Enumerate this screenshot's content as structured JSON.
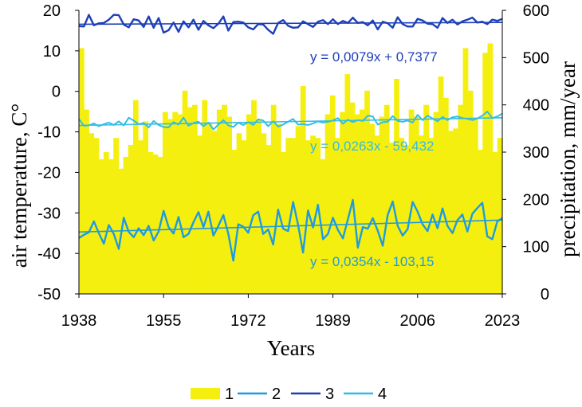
{
  "chart_data": {
    "type": "bar+line",
    "xlabel": "Years",
    "ylabel_left": "air temperature, C°",
    "ylabel_right": "precipitation, mm/year",
    "xlim": [
      1938,
      2023
    ],
    "x_ticks": [
      "1938",
      "1955",
      "1972",
      "1989",
      "2006",
      "2023"
    ],
    "ylim_left": [
      -50,
      20
    ],
    "y_ticks_left": [
      "20",
      "10",
      "0",
      "-10",
      "-20",
      "-30",
      "-40",
      "-50"
    ],
    "ylim_right": [
      0,
      600
    ],
    "y_ticks_right": [
      "600",
      "500",
      "400",
      "300",
      "200",
      "100",
      "0"
    ],
    "grid": false,
    "legend_position": "bottom",
    "legend": [
      "1",
      "2",
      "3",
      "4"
    ],
    "colors": {
      "precip": "#f5ef0f",
      "temp_min": "#1e9be0",
      "temp_max": "#1d3fb8",
      "temp_mean": "#33bde6"
    },
    "years_start": 1938,
    "series": [
      {
        "name": "1",
        "kind": "bar",
        "axis": "right",
        "values": [
          520,
          390,
          340,
          330,
          285,
          300,
          285,
          330,
          265,
          290,
          315,
          410,
          325,
          365,
          300,
          295,
          290,
          385,
          370,
          385,
          380,
          430,
          395,
          400,
          335,
          410,
          360,
          345,
          390,
          400,
          375,
          305,
          340,
          325,
          380,
          410,
          370,
          340,
          315,
          400,
          360,
          300,
          330,
          330,
          355,
          440,
          325,
          335,
          330,
          285,
          380,
          420,
          330,
          385,
          465,
          405,
          380,
          390,
          430,
          360,
          335,
          375,
          400,
          320,
          455,
          330,
          315,
          390,
          375,
          335,
          400,
          330,
          385,
          460,
          415,
          345,
          350,
          400,
          520,
          430,
          370,
          305,
          510,
          530,
          300,
          330
        ]
      },
      {
        "name": "2",
        "kind": "line",
        "axis": "left",
        "values": [
          -36.2,
          -35.4,
          -34.8,
          -32.1,
          -35.0,
          -37.6,
          -33.0,
          -35.2,
          -38.9,
          -31.2,
          -34.7,
          -36.0,
          -33.8,
          -35.5,
          -33.2,
          -36.8,
          -34.6,
          -29.5,
          -33.5,
          -35.1,
          -31.0,
          -36.0,
          -35.2,
          -32.3,
          -29.8,
          -33.5,
          -29.7,
          -35.6,
          -33.2,
          -30.5,
          -35.2,
          -41.8,
          -32.8,
          -33.4,
          -34.9,
          -30.6,
          -29.7,
          -35.2,
          -34.1,
          -37.8,
          -29.2,
          -33.9,
          -34.5,
          -27.3,
          -32.9,
          -39.8,
          -29.4,
          -33.6,
          -28.0,
          -36.5,
          -35.2,
          -31.2,
          -34.2,
          -36.3,
          -31.6,
          -26.8,
          -38.6,
          -33.5,
          -33.9,
          -31.3,
          -34.4,
          -38.1,
          -30.5,
          -27.2,
          -33.2,
          -35.6,
          -34.0,
          -27.3,
          -29.7,
          -32.8,
          -34.5,
          -30.4,
          -33.8,
          -28.9,
          -33.2,
          -35.0,
          -31.8,
          -30.4,
          -34.6,
          -30.2,
          -28.8,
          -27.5,
          -35.8,
          -36.5,
          -32.1,
          -31.3
        ]
      },
      {
        "name": "3",
        "kind": "line",
        "axis": "left",
        "values": [
          16.1,
          16.0,
          18.9,
          16.3,
          16.8,
          16.9,
          17.7,
          18.9,
          18.8,
          16.5,
          15.8,
          17.8,
          17.5,
          15.9,
          18.5,
          15.7,
          18.1,
          14.5,
          15.1,
          17.0,
          14.7,
          17.3,
          15.8,
          17.7,
          15.2,
          17.4,
          16.3,
          15.6,
          16.7,
          18.5,
          15.0,
          17.1,
          17.2,
          17.0,
          15.8,
          15.3,
          16.6,
          16.5,
          15.2,
          14.2,
          16.9,
          17.6,
          16.2,
          15.7,
          15.8,
          17.3,
          16.6,
          15.9,
          17.2,
          17.6,
          16.6,
          17.8,
          16.6,
          17.4,
          16.9,
          18.2,
          16.9,
          17.1,
          16.3,
          17.5,
          15.3,
          17.2,
          16.8,
          15.7,
          18.3,
          16.6,
          16.0,
          16.0,
          17.9,
          17.5,
          16.7,
          16.6,
          15.7,
          18.1,
          16.9,
          17.7,
          16.5,
          17.3,
          17.7,
          18.2,
          17.0,
          17.2,
          16.6,
          17.7,
          17.4,
          17.9
        ]
      },
      {
        "name": "4",
        "kind": "line",
        "axis": "left",
        "values": [
          -6.8,
          -8.5,
          -8.4,
          -7.9,
          -8.6,
          -8.1,
          -7.7,
          -8.3,
          -7.4,
          -8.4,
          -6.5,
          -7.2,
          -8.1,
          -7.8,
          -8.9,
          -7.3,
          -8.3,
          -8.8,
          -8.9,
          -7.6,
          -8.2,
          -6.5,
          -8.5,
          -7.8,
          -7.5,
          -8.6,
          -7.7,
          -9.4,
          -8.2,
          -7.1,
          -8.4,
          -8.8,
          -7.7,
          -8.3,
          -7.6,
          -8.3,
          -6.9,
          -7.2,
          -8.6,
          -7.4,
          -8.7,
          -8.2,
          -7.5,
          -6.8,
          -8.2,
          -8.1,
          -8.3,
          -7.9,
          -7.4,
          -7.7,
          -7.5,
          -7.2,
          -6.6,
          -8.0,
          -7.0,
          -7.6,
          -7.1,
          -7.3,
          -6.0,
          -6.2,
          -8.2,
          -7.6,
          -7.5,
          -6.1,
          -7.3,
          -7.5,
          -7.2,
          -7.7,
          -5.8,
          -7.1,
          -6.0,
          -6.7,
          -7.4,
          -6.3,
          -7.1,
          -6.4,
          -6.2,
          -6.6,
          -6.8,
          -7.1,
          -6.7,
          -6.0,
          -5.0,
          -6.6,
          -6.2,
          -5.5
        ]
      }
    ],
    "trendlines": [
      {
        "series": "3",
        "equation": "y = 0,0079x + 0,7377"
      },
      {
        "series": "4",
        "equation": "y = 0,0263x - 59,432"
      },
      {
        "series": "2",
        "equation": "y = 0,0354x - 103,15"
      }
    ]
  }
}
